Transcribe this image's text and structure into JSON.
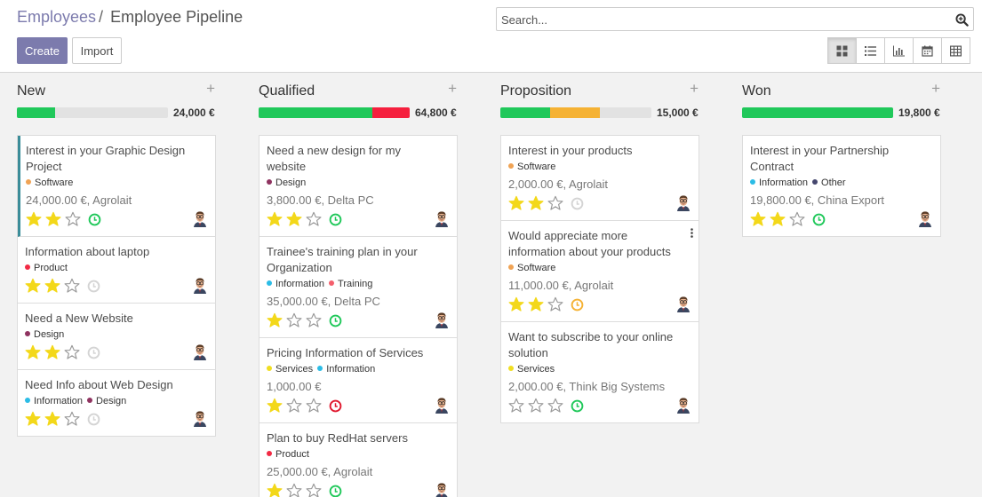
{
  "breadcrumb": {
    "parent": "Employees",
    "separator": "/",
    "current": "Employee Pipeline"
  },
  "search": {
    "placeholder": "Search..."
  },
  "buttons": {
    "create": "Create",
    "import": "Import"
  },
  "views": [
    "kanban-icon",
    "list-icon",
    "graph-icon",
    "calendar-icon",
    "pivot-icon"
  ],
  "tag_colors": {
    "Software": "#f0a354",
    "Product": "#f22a44",
    "Design": "#8f3360",
    "Information": "#2bbce6",
    "Training": "#f45f6c",
    "Services": "#f0de21",
    "Other": "#45476e"
  },
  "columns": [
    {
      "title": "New",
      "total": "24,000 €",
      "progress": [
        {
          "color": "#20c85a",
          "fraction": 0.25
        }
      ],
      "cards": [
        {
          "title": "Interest in your Graphic Design Project",
          "tags": [
            "Software"
          ],
          "amount": "24,000.00 €, Agrolait",
          "stars": 2,
          "activity": "#20c85a",
          "selected": true
        },
        {
          "title": "Information about laptop",
          "tags": [
            "Product"
          ],
          "amount": "",
          "stars": 2,
          "activity": "#d4d4d4"
        },
        {
          "title": "Need a New Website",
          "tags": [
            "Design"
          ],
          "amount": "",
          "stars": 2,
          "activity": "#d4d4d4"
        },
        {
          "title": "Need Info about Web Design",
          "tags": [
            "Information",
            "Design"
          ],
          "amount": "",
          "stars": 2,
          "activity": "#d4d4d4"
        }
      ]
    },
    {
      "title": "Qualified",
      "total": "64,800 €",
      "progress": [
        {
          "color": "#20c85a",
          "fraction": 0.75
        },
        {
          "color": "#f5203e",
          "fraction": 0.25
        }
      ],
      "cards": [
        {
          "title": "Need a new design for my website",
          "tags": [
            "Design"
          ],
          "amount": "3,800.00 €, Delta PC",
          "stars": 2,
          "activity": "#20c85a"
        },
        {
          "title": "Trainee's training plan in your Organization",
          "tags": [
            "Information",
            "Training"
          ],
          "amount": "35,000.00 €, Delta PC",
          "stars": 1,
          "activity": "#20c85a"
        },
        {
          "title": "Pricing Information of Services",
          "tags": [
            "Services",
            "Information"
          ],
          "amount": "1,000.00 €",
          "stars": 1,
          "activity": "#e0182e"
        },
        {
          "title": "Plan to buy RedHat servers",
          "tags": [
            "Product"
          ],
          "amount": "25,000.00 €, Agrolait",
          "stars": 1,
          "activity": "#20c85a"
        }
      ]
    },
    {
      "title": "Proposition",
      "total": "15,000 €",
      "progress": [
        {
          "color": "#20c85a",
          "fraction": 0.33
        },
        {
          "color": "#f5b234",
          "fraction": 0.33
        }
      ],
      "cards": [
        {
          "title": "Interest in your products",
          "tags": [
            "Software"
          ],
          "amount": "2,000.00 €, Agrolait",
          "stars": 2,
          "activity": "#d4d4d4"
        },
        {
          "title": "Would appreciate more information about your products",
          "tags": [
            "Software"
          ],
          "amount": "11,000.00 €, Agrolait",
          "stars": 2,
          "activity": "#f5b234",
          "menu": true
        },
        {
          "title": "Want to subscribe to your online solution",
          "tags": [
            "Services"
          ],
          "amount": "2,000.00 €, Think Big Systems",
          "stars": 0,
          "activity": "#20c85a"
        }
      ]
    },
    {
      "title": "Won",
      "total": "19,800 €",
      "progress": [
        {
          "color": "#20c85a",
          "fraction": 1.0
        }
      ],
      "cards": [
        {
          "title": "Interest in your Partnership Contract",
          "tags": [
            "Information",
            "Other"
          ],
          "amount": "19,800.00 €, China Export",
          "stars": 2,
          "activity": "#20c85a"
        }
      ]
    }
  ]
}
